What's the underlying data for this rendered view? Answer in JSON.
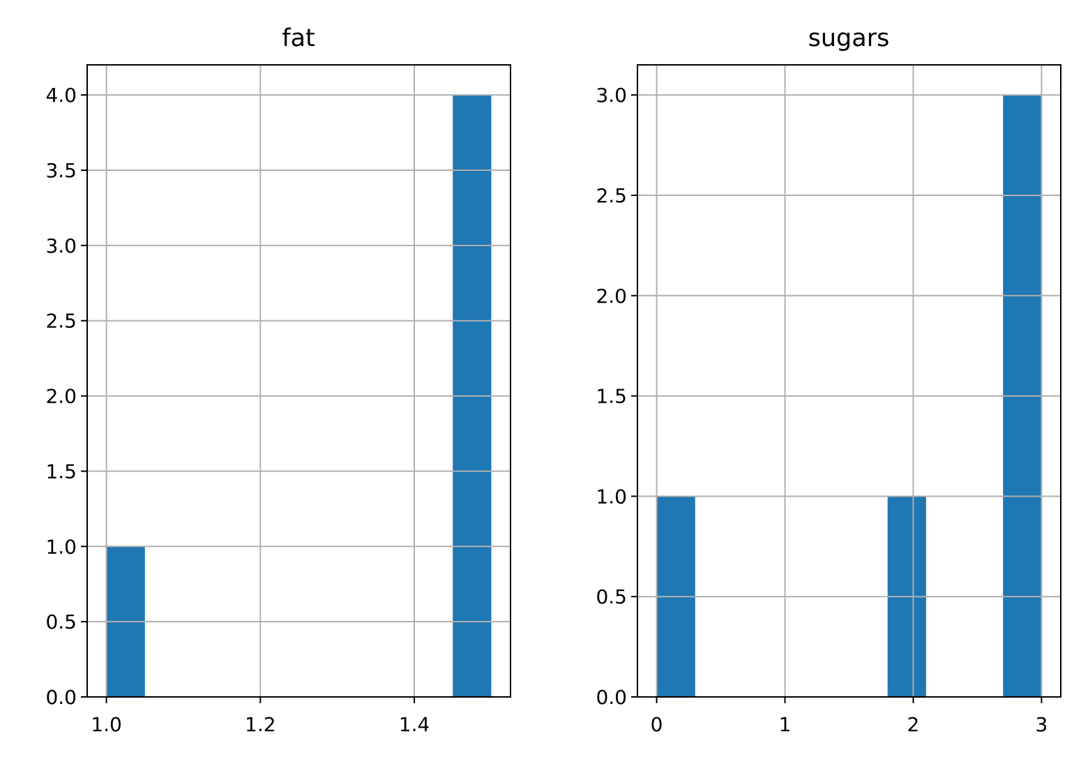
{
  "chart_data": [
    {
      "type": "bar",
      "subtype": "histogram",
      "title": "fat",
      "xlabel": "",
      "ylabel": "",
      "bins": [
        {
          "start": 1.0,
          "end": 1.05,
          "count": 1
        },
        {
          "start": 1.45,
          "end": 1.5,
          "count": 4
        }
      ],
      "xlim": [
        0.975,
        1.525
      ],
      "ylim": [
        0,
        4.2
      ],
      "xticks": [
        1.0,
        1.2,
        1.4
      ],
      "xtick_labels": [
        "1.0",
        "1.2",
        "1.4"
      ],
      "yticks": [
        0,
        0.5,
        1,
        1.5,
        2,
        2.5,
        3,
        3.5,
        4
      ],
      "ytick_labels": [
        "0.0",
        "0.5",
        "1.0",
        "1.5",
        "2.0",
        "2.5",
        "3.0",
        "3.5",
        "4.0"
      ],
      "grid": true,
      "color": "#1f77b4"
    },
    {
      "type": "bar",
      "subtype": "histogram",
      "title": "sugars",
      "xlabel": "",
      "ylabel": "",
      "bins": [
        {
          "start": 0.0,
          "end": 0.3,
          "count": 1
        },
        {
          "start": 1.8,
          "end": 2.1,
          "count": 1
        },
        {
          "start": 2.7,
          "end": 3.0,
          "count": 3
        }
      ],
      "xlim": [
        -0.15,
        3.15
      ],
      "ylim": [
        0,
        3.15
      ],
      "xticks": [
        0,
        1,
        2,
        3
      ],
      "xtick_labels": [
        "0",
        "1",
        "2",
        "3"
      ],
      "yticks": [
        0,
        0.5,
        1,
        1.5,
        2,
        2.5,
        3
      ],
      "ytick_labels": [
        "0.0",
        "0.5",
        "1.0",
        "1.5",
        "2.0",
        "2.5",
        "3.0"
      ],
      "grid": true,
      "color": "#1f77b4"
    }
  ]
}
